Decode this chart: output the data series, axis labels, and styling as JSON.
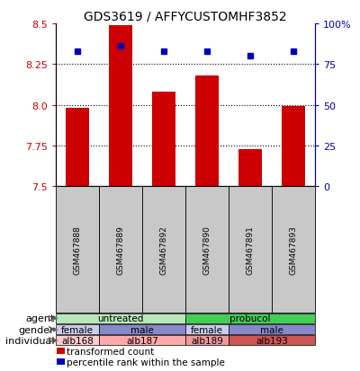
{
  "title": "GDS3619 / AFFYCUSTOMHF3852",
  "samples": [
    "GSM467888",
    "GSM467889",
    "GSM467892",
    "GSM467890",
    "GSM467891",
    "GSM467893"
  ],
  "red_values": [
    7.98,
    8.49,
    8.08,
    8.18,
    7.73,
    7.99
  ],
  "blue_values": [
    83,
    86,
    83,
    83,
    80,
    83
  ],
  "ylim_left": [
    7.5,
    8.5
  ],
  "ylim_right": [
    0,
    100
  ],
  "yticks_left": [
    7.5,
    7.75,
    8.0,
    8.25,
    8.5
  ],
  "yticks_right": [
    0,
    25,
    50,
    75,
    100
  ],
  "annotation_rows": [
    {
      "label": "agent",
      "groups": [
        {
          "text": "untreated",
          "span": [
            0,
            3
          ],
          "color": "#b8e8b8"
        },
        {
          "text": "probucol",
          "span": [
            3,
            6
          ],
          "color": "#44cc55"
        }
      ]
    },
    {
      "label": "gender",
      "groups": [
        {
          "text": "female",
          "span": [
            0,
            1
          ],
          "color": "#ccccee"
        },
        {
          "text": "male",
          "span": [
            1,
            3
          ],
          "color": "#8888cc"
        },
        {
          "text": "female",
          "span": [
            3,
            4
          ],
          "color": "#ccccee"
        },
        {
          "text": "male",
          "span": [
            4,
            6
          ],
          "color": "#8888cc"
        }
      ]
    },
    {
      "label": "individual",
      "groups": [
        {
          "text": "alb168",
          "span": [
            0,
            1
          ],
          "color": "#ffcccc"
        },
        {
          "text": "alb187",
          "span": [
            1,
            3
          ],
          "color": "#ffaaaa"
        },
        {
          "text": "alb189",
          "span": [
            3,
            4
          ],
          "color": "#ee9999"
        },
        {
          "text": "alb193",
          "span": [
            4,
            6
          ],
          "color": "#cc5555"
        }
      ]
    }
  ],
  "bar_color": "#cc0000",
  "dot_color": "#0000bb",
  "bar_bottom": 7.5,
  "sample_bg_color": "#c8c8c8",
  "legend_items": [
    {
      "color": "#cc0000",
      "label": "transformed count"
    },
    {
      "color": "#0000bb",
      "label": "percentile rank within the sample"
    }
  ]
}
